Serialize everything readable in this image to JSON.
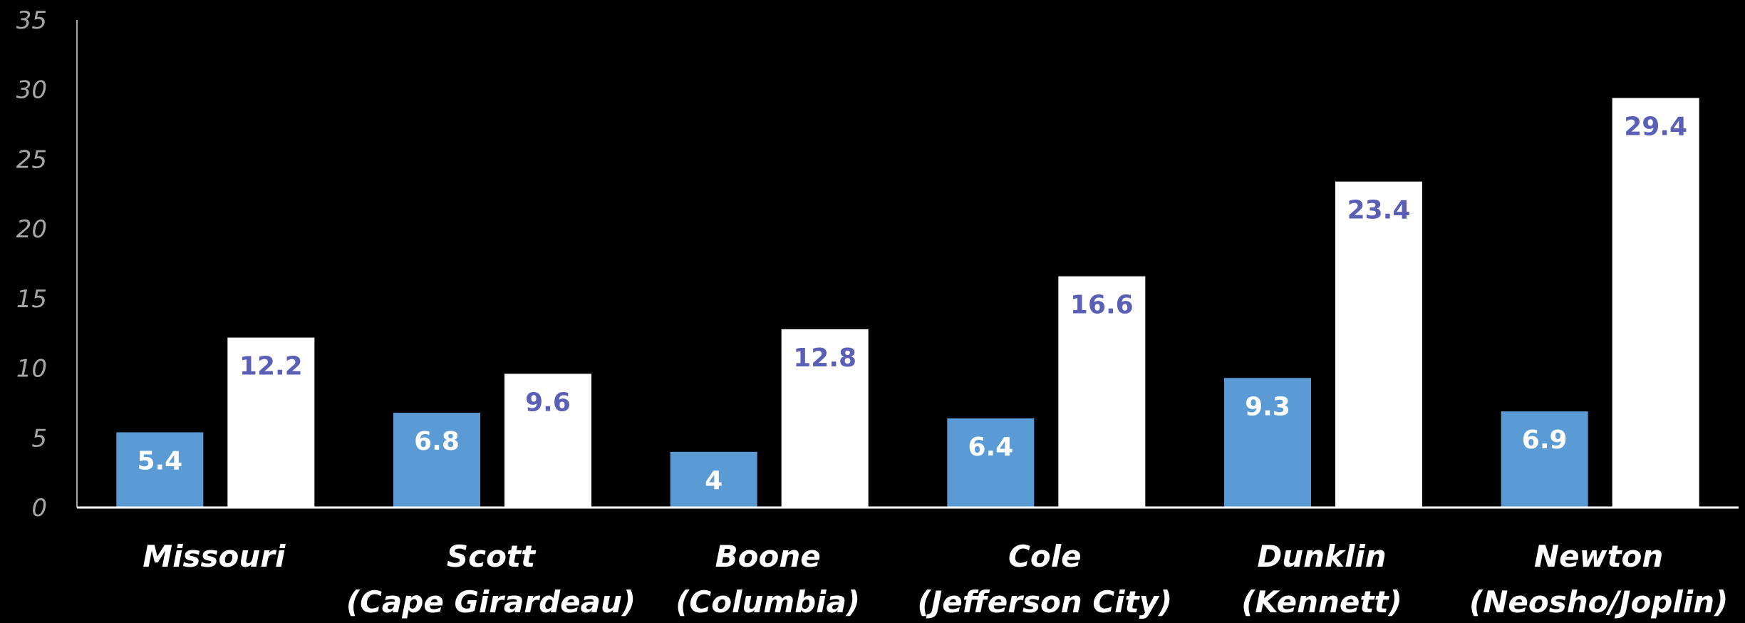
{
  "chart_data": {
    "type": "bar",
    "title": "",
    "xlabel": "",
    "ylabel": "",
    "ylim": [
      0,
      35
    ],
    "yticks": [
      0,
      5,
      10,
      15,
      20,
      25,
      30,
      35
    ],
    "grid": false,
    "legend": "none",
    "categories": [
      [
        "Missouri"
      ],
      [
        "Scott",
        "(Cape Girardeau)"
      ],
      [
        "Boone",
        "(Columbia)"
      ],
      [
        "Cole",
        "(Jefferson City)"
      ],
      [
        "Dunklin",
        "(Kennett)"
      ],
      [
        "Newton",
        "(Neosho/Joplin)"
      ]
    ],
    "series": [
      {
        "values": [
          5.4,
          6.8,
          4,
          6.4,
          9.3,
          6.9
        ],
        "color": "#5b9bd5",
        "label_color": "#ffffff"
      },
      {
        "values": [
          12.2,
          9.6,
          12.8,
          16.6,
          23.4,
          29.4
        ],
        "color": "#ffffff",
        "label_color": "#5b5fb5"
      }
    ]
  }
}
